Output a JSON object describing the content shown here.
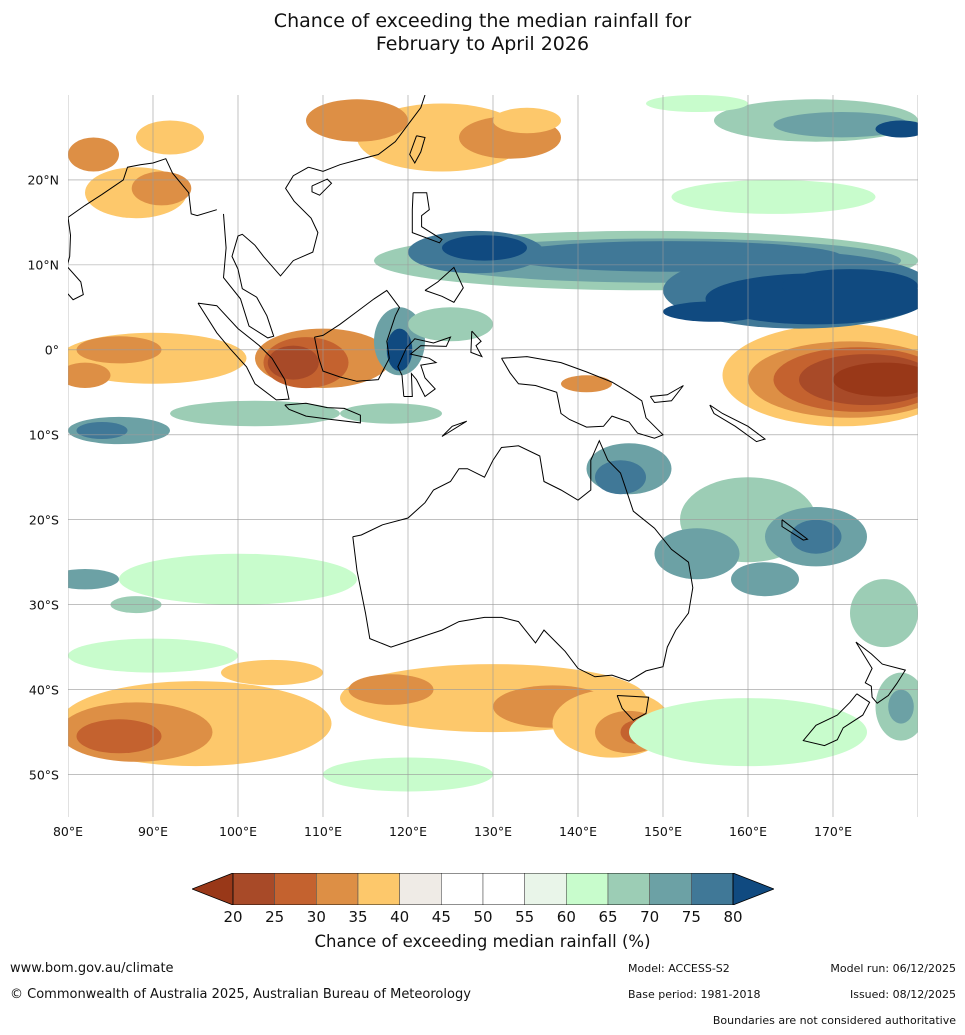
{
  "title": {
    "line1": "Chance of exceeding the median rainfall for",
    "line2": "February to April 2026"
  },
  "map": {
    "extent": {
      "lon_min": 80,
      "lon_max": 180,
      "lat_min": -55,
      "lat_max": 30
    },
    "lat_labels": [
      {
        "lat": 20,
        "text": "20°N"
      },
      {
        "lat": 10,
        "text": "10°N"
      },
      {
        "lat": 0,
        "text": "0°"
      },
      {
        "lat": -10,
        "text": "10°S"
      },
      {
        "lat": -20,
        "text": "20°S"
      },
      {
        "lat": -30,
        "text": "30°S"
      },
      {
        "lat": -40,
        "text": "40°S"
      },
      {
        "lat": -50,
        "text": "50°S"
      }
    ],
    "lon_labels": [
      {
        "lon": 80,
        "text": "80°E"
      },
      {
        "lon": 90,
        "text": "90°E"
      },
      {
        "lon": 100,
        "text": "100°E"
      },
      {
        "lon": 110,
        "text": "110°E"
      },
      {
        "lon": 120,
        "text": "120°E"
      },
      {
        "lon": 130,
        "text": "130°E"
      },
      {
        "lon": 140,
        "text": "140°E"
      },
      {
        "lon": 150,
        "text": "150°E"
      },
      {
        "lon": 160,
        "text": "160°E"
      },
      {
        "lon": 170,
        "text": "170°E"
      }
    ],
    "regions": [
      {
        "name": "equatorial-west-pacific-wet-band",
        "lon": [
          152,
          180
        ],
        "lat": [
          3,
          10
        ],
        "value_range": [
          75,
          80
        ]
      },
      {
        "name": "philippine-sea-wet-band",
        "lon": [
          115,
          180
        ],
        "lat": [
          8,
          14
        ],
        "value_range": [
          70,
          80
        ]
      },
      {
        "name": "central-pacific-dry-tongue",
        "lon": [
          160,
          180
        ],
        "lat": [
          -9,
          3
        ],
        "value_range": [
          20,
          25
        ]
      },
      {
        "name": "borneo-sumatra-dry-patch",
        "lon": [
          103,
          116
        ],
        "lat": [
          -5,
          2
        ],
        "value_range": [
          20,
          30
        ]
      },
      {
        "name": "eastern-indian-ocean-dry-band",
        "lon": [
          80,
          100
        ],
        "lat": [
          -5,
          2
        ],
        "value_range": [
          30,
          40
        ]
      },
      {
        "name": "east-australia-coral-sea-wet",
        "lon": [
          150,
          180
        ],
        "lat": [
          -30,
          -15
        ],
        "value_range": [
          70,
          80
        ]
      },
      {
        "name": "southern-ocean-dry-band",
        "lon": [
          80,
          160
        ],
        "lat": [
          -50,
          -38
        ],
        "value_range": [
          25,
          40
        ]
      },
      {
        "name": "bay-of-bengal-dry-patch",
        "lon": [
          80,
          95
        ],
        "lat": [
          15,
          22
        ],
        "value_range": [
          30,
          40
        ]
      }
    ],
    "colors": {
      "lt20": "#993818",
      "20-25": "#a84a28",
      "25-30": "#c4622f",
      "30-35": "#dd8f45",
      "35-40": "#fdc86b",
      "40-45": "#efebe6",
      "45-55": "#ffffff",
      "55-60": "#e9f5e9",
      "60-65": "#c8fccc",
      "65-70": "#9ccdb5",
      "70-75": "#6ca1a5",
      "75-80": "#407897",
      "gt80": "#104a80"
    }
  },
  "colorbar": {
    "ticks": [
      "20",
      "25",
      "30",
      "35",
      "40",
      "45",
      "50",
      "55",
      "60",
      "65",
      "70",
      "75",
      "80"
    ],
    "colors": [
      "#a84a28",
      "#c4622f",
      "#dd8f45",
      "#fdc86b",
      "#efebe6",
      "#ffffff",
      "#ffffff",
      "#e9f5e9",
      "#c8fccc",
      "#9ccdb5",
      "#6ca1a5",
      "#407897"
    ],
    "under_color": "#993818",
    "over_color": "#104a80",
    "label": "Chance of exceeding median rainfall (%)"
  },
  "footer": {
    "website": "www.bom.gov.au/climate",
    "copyright": "© Commonwealth of Australia 2025, Australian Bureau of Meteorology",
    "model": "Model: ACCESS-S2",
    "base_period": "Base period: 1981-2018",
    "model_run": "Model run: 06/12/2025",
    "issued": "Issued: 08/12/2025",
    "disclaimer": "Boundaries are not considered authoritative"
  }
}
